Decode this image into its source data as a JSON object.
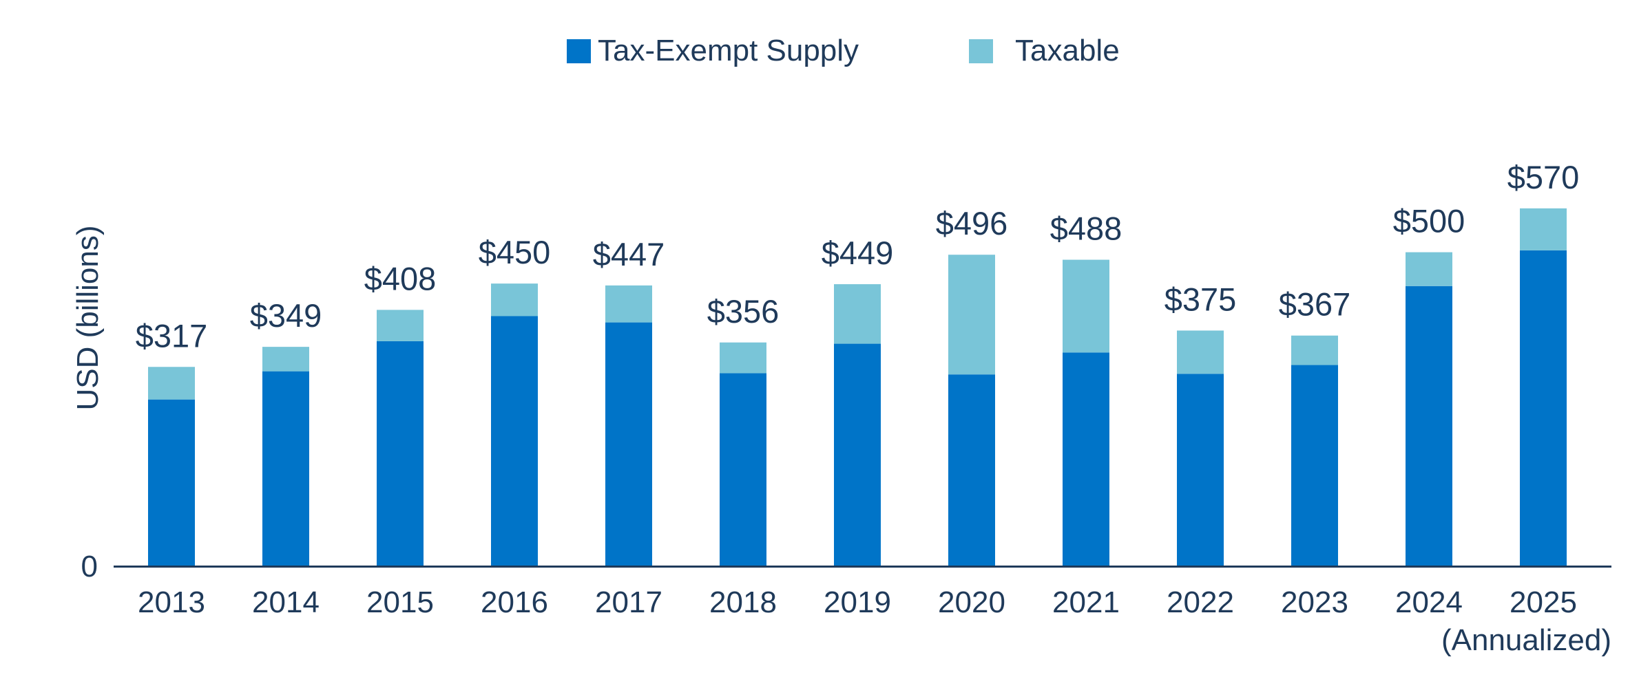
{
  "chart_data": {
    "type": "bar",
    "stacked": true,
    "title": "",
    "xlabel": "",
    "ylabel": "USD (billions)",
    "y_zero_label": "0",
    "ylim": [
      0,
      620
    ],
    "grid": false,
    "legend_position": "top-center",
    "categories": [
      "2013",
      "2014",
      "2015",
      "2016",
      "2017",
      "2018",
      "2019",
      "2020",
      "2021",
      "2022",
      "2023",
      "2024",
      "2025"
    ],
    "category_sublabels": [
      "",
      "",
      "",
      "",
      "",
      "",
      "",
      "",
      "",
      "",
      "",
      "",
      "(Annualized)"
    ],
    "series": [
      {
        "name": "Tax-Exempt Supply",
        "color": "#0074c8",
        "values": [
          265,
          310,
          358,
          398,
          388,
          307,
          354,
          305,
          340,
          306,
          320,
          446,
          503
        ]
      },
      {
        "name": "Taxable",
        "color": "#79c5d8",
        "values": [
          52,
          39,
          50,
          52,
          59,
          49,
          95,
          191,
          148,
          69,
          47,
          54,
          67
        ]
      }
    ],
    "totals": [
      317,
      349,
      408,
      450,
      447,
      356,
      449,
      496,
      488,
      375,
      367,
      500,
      570
    ],
    "total_labels": [
      "$317",
      "$349",
      "$408",
      "$450",
      "$447",
      "$356",
      "$449",
      "$496",
      "$488",
      "$375",
      "$367",
      "$500",
      "$570"
    ],
    "axis_color": "#1f3a5a"
  }
}
